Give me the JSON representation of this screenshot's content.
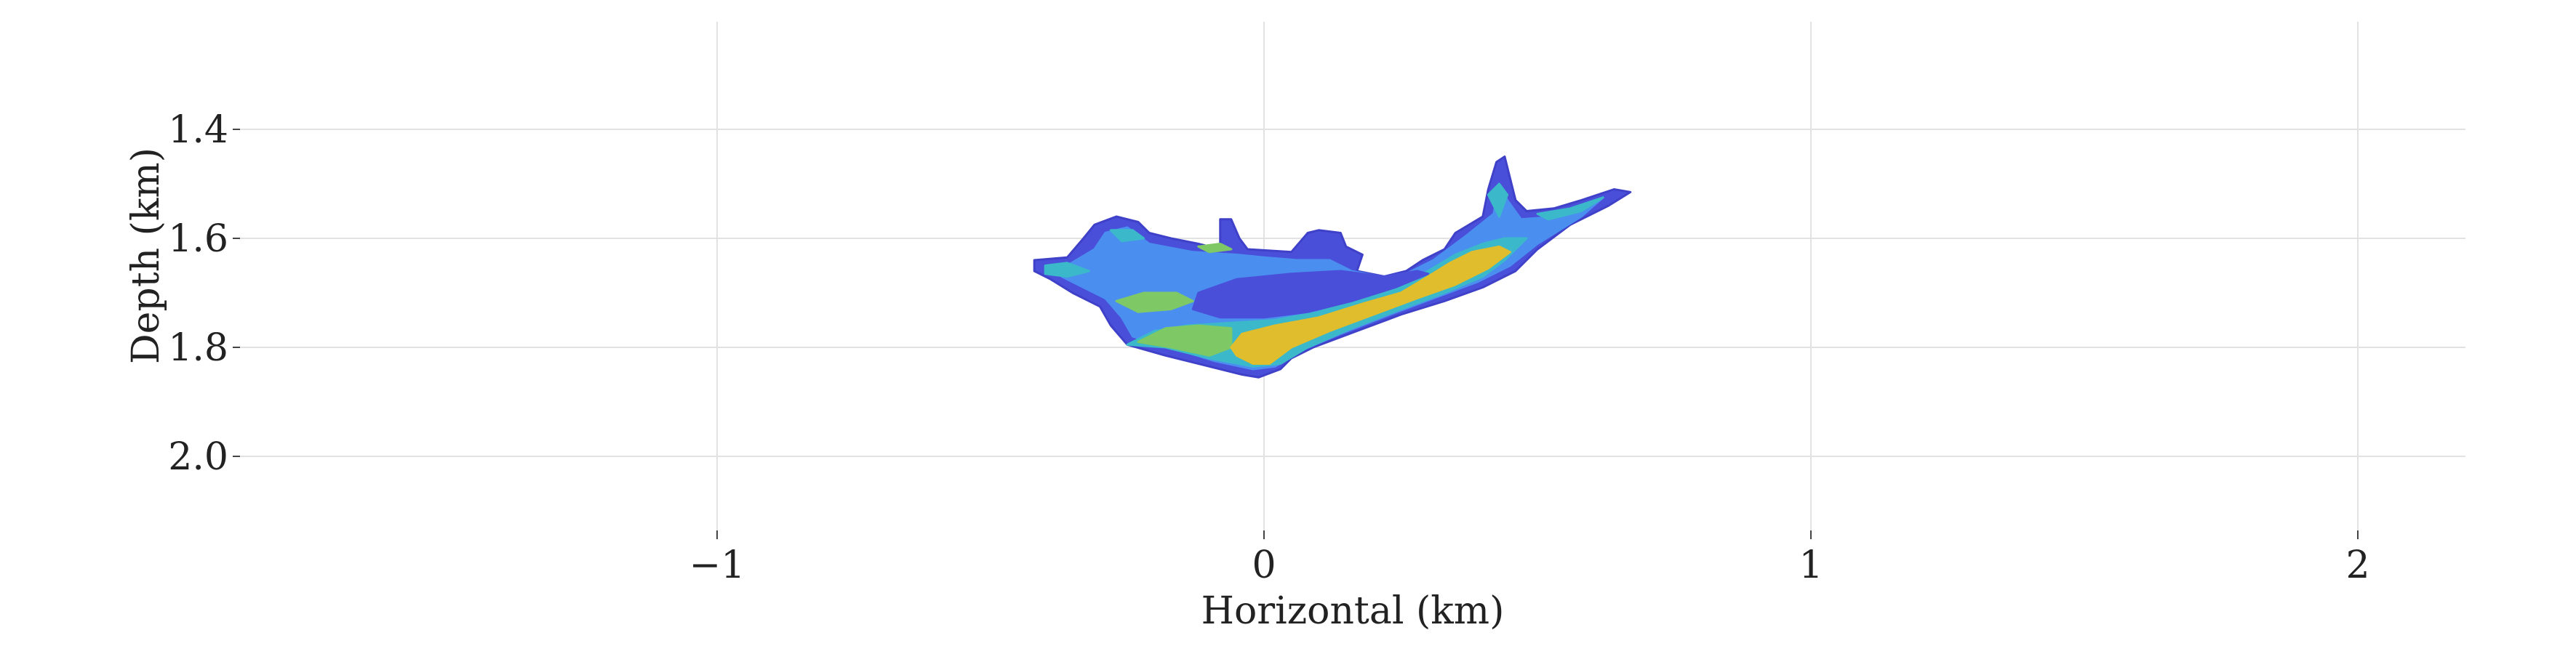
{
  "chart_data": {
    "type": "heatmap",
    "title": "",
    "xlabel": "Horizontal (km)",
    "ylabel": "Depth (km)",
    "xlim": [
      -2.0,
      2.2
    ],
    "ylim": [
      2.12,
      1.2
    ],
    "y_inverted": true,
    "grid": true,
    "x_ticks": [
      -1,
      0,
      1,
      2
    ],
    "x_tick_labels": [
      "−1",
      "0",
      "1",
      "2"
    ],
    "y_ticks": [
      1.4,
      1.6,
      1.8,
      2.0
    ],
    "y_tick_labels": [
      "1.4",
      "1.6",
      "1.8",
      "2.0"
    ],
    "colors": {
      "outer": "#4a4fd9",
      "mid": "#4a8ff0",
      "teal": "#3bb8c9",
      "green": "#7ec866",
      "yellow": "#e0bd2d",
      "grid": "#e2e2e2"
    },
    "regions": [
      {
        "level": "outer",
        "points": [
          [
            -0.42,
            1.64
          ],
          [
            -0.36,
            1.635
          ],
          [
            -0.33,
            1.6
          ],
          [
            -0.31,
            1.575
          ],
          [
            -0.27,
            1.56
          ],
          [
            -0.23,
            1.57
          ],
          [
            -0.21,
            1.59
          ],
          [
            -0.17,
            1.6
          ],
          [
            -0.12,
            1.61
          ],
          [
            -0.08,
            1.62
          ],
          [
            -0.08,
            1.565
          ],
          [
            -0.06,
            1.565
          ],
          [
            -0.045,
            1.6
          ],
          [
            -0.03,
            1.62
          ],
          [
            0.05,
            1.625
          ],
          [
            0.08,
            1.59
          ],
          [
            0.1,
            1.585
          ],
          [
            0.14,
            1.59
          ],
          [
            0.15,
            1.615
          ],
          [
            0.18,
            1.63
          ],
          [
            0.17,
            1.66
          ],
          [
            0.22,
            1.67
          ],
          [
            0.26,
            1.66
          ],
          [
            0.29,
            1.64
          ],
          [
            0.33,
            1.62
          ],
          [
            0.35,
            1.59
          ],
          [
            0.4,
            1.56
          ],
          [
            0.41,
            1.51
          ],
          [
            0.425,
            1.46
          ],
          [
            0.44,
            1.45
          ],
          [
            0.45,
            1.49
          ],
          [
            0.46,
            1.53
          ],
          [
            0.48,
            1.55
          ],
          [
            0.53,
            1.545
          ],
          [
            0.58,
            1.53
          ],
          [
            0.64,
            1.51
          ],
          [
            0.67,
            1.515
          ],
          [
            0.63,
            1.54
          ],
          [
            0.56,
            1.575
          ],
          [
            0.5,
            1.62
          ],
          [
            0.46,
            1.66
          ],
          [
            0.4,
            1.69
          ],
          [
            0.33,
            1.715
          ],
          [
            0.25,
            1.74
          ],
          [
            0.17,
            1.77
          ],
          [
            0.09,
            1.8
          ],
          [
            0.05,
            1.82
          ],
          [
            0.03,
            1.84
          ],
          [
            -0.01,
            1.855
          ],
          [
            -0.04,
            1.85
          ],
          [
            -0.1,
            1.835
          ],
          [
            -0.18,
            1.815
          ],
          [
            -0.25,
            1.795
          ],
          [
            -0.28,
            1.76
          ],
          [
            -0.3,
            1.725
          ],
          [
            -0.35,
            1.7
          ],
          [
            -0.39,
            1.675
          ],
          [
            -0.42,
            1.66
          ]
        ]
      },
      {
        "level": "mid",
        "points": [
          [
            -0.36,
            1.65
          ],
          [
            -0.31,
            1.62
          ],
          [
            -0.29,
            1.59
          ],
          [
            -0.25,
            1.58
          ],
          [
            -0.21,
            1.61
          ],
          [
            -0.13,
            1.625
          ],
          [
            -0.05,
            1.63
          ],
          [
            0.0,
            1.635
          ],
          [
            0.06,
            1.64
          ],
          [
            0.12,
            1.64
          ],
          [
            0.16,
            1.66
          ],
          [
            0.24,
            1.675
          ],
          [
            0.31,
            1.64
          ],
          [
            0.37,
            1.595
          ],
          [
            0.42,
            1.555
          ],
          [
            0.43,
            1.5
          ],
          [
            0.445,
            1.53
          ],
          [
            0.47,
            1.565
          ],
          [
            0.54,
            1.56
          ],
          [
            0.62,
            1.525
          ],
          [
            0.58,
            1.56
          ],
          [
            0.5,
            1.61
          ],
          [
            0.45,
            1.65
          ],
          [
            0.39,
            1.68
          ],
          [
            0.31,
            1.71
          ],
          [
            0.23,
            1.74
          ],
          [
            0.14,
            1.775
          ],
          [
            0.07,
            1.805
          ],
          [
            0.02,
            1.835
          ],
          [
            -0.02,
            1.84
          ],
          [
            -0.09,
            1.825
          ],
          [
            -0.17,
            1.8
          ],
          [
            -0.24,
            1.78
          ],
          [
            -0.26,
            1.745
          ],
          [
            -0.29,
            1.71
          ],
          [
            -0.33,
            1.69
          ],
          [
            -0.37,
            1.67
          ]
        ]
      },
      {
        "level": "teal",
        "points": [
          [
            -0.25,
            1.795
          ],
          [
            -0.2,
            1.77
          ],
          [
            -0.14,
            1.76
          ],
          [
            -0.06,
            1.755
          ],
          [
            0.02,
            1.75
          ],
          [
            0.1,
            1.735
          ],
          [
            0.18,
            1.71
          ],
          [
            0.25,
            1.685
          ],
          [
            0.3,
            1.66
          ],
          [
            0.35,
            1.63
          ],
          [
            0.4,
            1.61
          ],
          [
            0.44,
            1.6
          ],
          [
            0.48,
            1.6
          ],
          [
            0.44,
            1.64
          ],
          [
            0.4,
            1.67
          ],
          [
            0.33,
            1.7
          ],
          [
            0.25,
            1.73
          ],
          [
            0.16,
            1.765
          ],
          [
            0.08,
            1.8
          ],
          [
            0.03,
            1.83
          ],
          [
            -0.02,
            1.835
          ],
          [
            -0.1,
            1.82
          ],
          [
            -0.18,
            1.8
          ]
        ]
      },
      {
        "level": "green",
        "points": [
          [
            -0.23,
            1.79
          ],
          [
            -0.18,
            1.765
          ],
          [
            -0.12,
            1.76
          ],
          [
            -0.06,
            1.765
          ],
          [
            -0.06,
            1.8
          ],
          [
            -0.1,
            1.815
          ],
          [
            -0.17,
            1.8
          ]
        ]
      },
      {
        "level": "yellow",
        "points": [
          [
            -0.06,
            1.8
          ],
          [
            -0.04,
            1.775
          ],
          [
            0.02,
            1.76
          ],
          [
            0.1,
            1.745
          ],
          [
            0.18,
            1.72
          ],
          [
            0.25,
            1.7
          ],
          [
            0.3,
            1.67
          ],
          [
            0.34,
            1.645
          ],
          [
            0.38,
            1.625
          ],
          [
            0.43,
            1.615
          ],
          [
            0.45,
            1.625
          ],
          [
            0.41,
            1.655
          ],
          [
            0.35,
            1.685
          ],
          [
            0.28,
            1.71
          ],
          [
            0.2,
            1.74
          ],
          [
            0.12,
            1.77
          ],
          [
            0.05,
            1.8
          ],
          [
            0.01,
            1.83
          ],
          [
            -0.02,
            1.83
          ],
          [
            -0.05,
            1.815
          ]
        ]
      },
      {
        "level": "green",
        "points": [
          [
            -0.27,
            1.715
          ],
          [
            -0.22,
            1.7
          ],
          [
            -0.16,
            1.7
          ],
          [
            -0.13,
            1.715
          ],
          [
            -0.17,
            1.73
          ],
          [
            -0.23,
            1.735
          ]
        ]
      },
      {
        "level": "teal",
        "points": [
          [
            -0.4,
            1.65
          ],
          [
            -0.36,
            1.645
          ],
          [
            -0.32,
            1.66
          ],
          [
            -0.36,
            1.67
          ],
          [
            -0.4,
            1.665
          ]
        ]
      },
      {
        "level": "teal",
        "points": [
          [
            -0.28,
            1.585
          ],
          [
            -0.24,
            1.585
          ],
          [
            -0.22,
            1.6
          ],
          [
            -0.26,
            1.605
          ]
        ]
      },
      {
        "level": "green",
        "points": [
          [
            -0.12,
            1.615
          ],
          [
            -0.08,
            1.61
          ],
          [
            -0.06,
            1.62
          ],
          [
            -0.1,
            1.625
          ]
        ]
      },
      {
        "level": "teal",
        "points": [
          [
            0.5,
            1.555
          ],
          [
            0.56,
            1.545
          ],
          [
            0.62,
            1.525
          ],
          [
            0.58,
            1.55
          ],
          [
            0.52,
            1.565
          ]
        ]
      },
      {
        "level": "teal",
        "points": [
          [
            0.41,
            1.52
          ],
          [
            0.43,
            1.5
          ],
          [
            0.445,
            1.52
          ],
          [
            0.43,
            1.56
          ]
        ]
      },
      {
        "level": "outer",
        "points": [
          [
            -0.12,
            1.7
          ],
          [
            -0.05,
            1.675
          ],
          [
            0.05,
            1.665
          ],
          [
            0.14,
            1.66
          ],
          [
            0.22,
            1.67
          ],
          [
            0.28,
            1.66
          ],
          [
            0.3,
            1.665
          ],
          [
            0.24,
            1.69
          ],
          [
            0.16,
            1.715
          ],
          [
            0.08,
            1.735
          ],
          [
            0.0,
            1.745
          ],
          [
            -0.08,
            1.745
          ],
          [
            -0.13,
            1.73
          ]
        ]
      }
    ]
  }
}
